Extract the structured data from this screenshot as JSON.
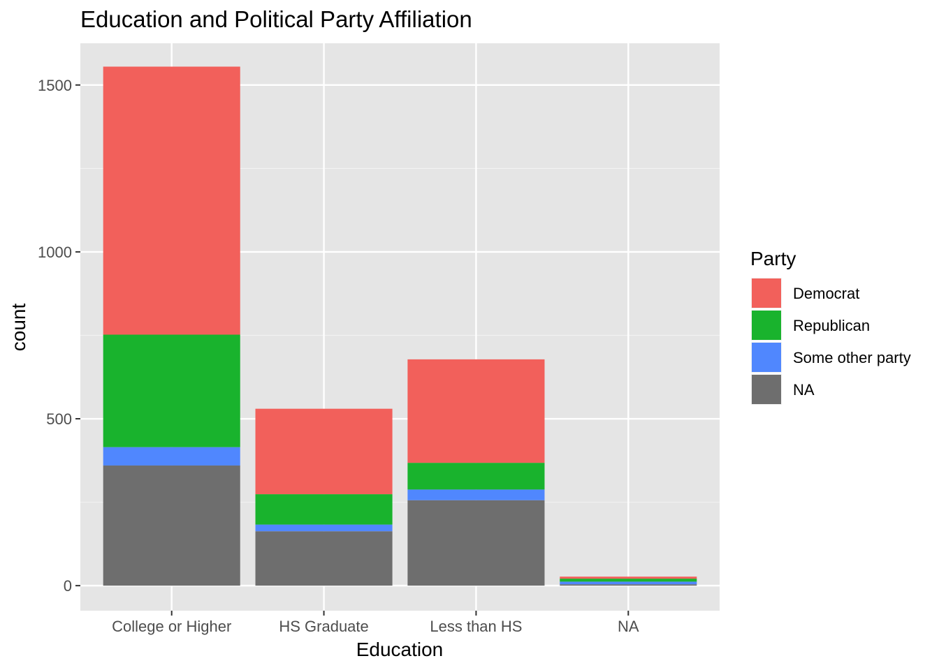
{
  "chart_data": {
    "type": "bar",
    "stacked": true,
    "title": "Education and Political Party Affiliation",
    "xlabel": "Education",
    "ylabel": "count",
    "categories": [
      "College or Higher",
      "HS Graduate",
      "Less than HS",
      "NA"
    ],
    "ylim": [
      -75,
      1625
    ],
    "yticks": [
      0,
      500,
      1000,
      1500
    ],
    "grid": true,
    "legend": {
      "title": "Party",
      "placement": "right"
    },
    "series": [
      {
        "name": "NA",
        "color": "#6e6e6e",
        "values": [
          360,
          163,
          256,
          4
        ]
      },
      {
        "name": "Some other party",
        "color": "#5087fe",
        "values": [
          55,
          20,
          32,
          8
        ]
      },
      {
        "name": "Republican",
        "color": "#19b32d",
        "values": [
          337,
          91,
          80,
          9
        ]
      },
      {
        "name": "Democrat",
        "color": "#f2605b",
        "values": [
          803,
          256,
          310,
          6
        ]
      }
    ],
    "legend_order": [
      "Democrat",
      "Republican",
      "Some other party",
      "NA"
    ]
  }
}
